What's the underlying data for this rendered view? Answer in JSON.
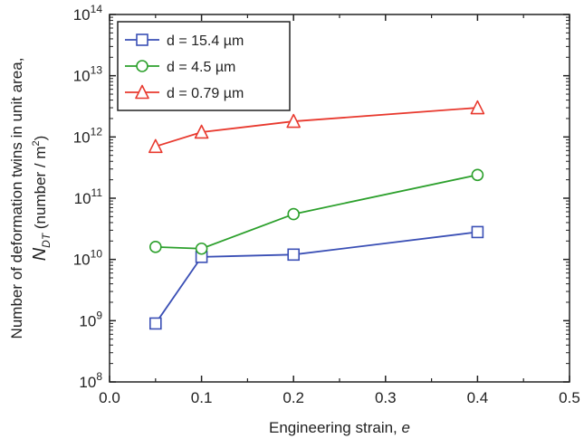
{
  "chart_data": {
    "type": "line",
    "title": "",
    "xlabel": "Engineering strain, e",
    "xlabel_main": "Engineering strain, ",
    "xlabel_var": "e",
    "ylabel_line1": "Number of deformation twins in unit area,",
    "ylabel_line2_sym": "N",
    "ylabel_line2_sub": "DT",
    "ylabel_line2_rest": " (number / m",
    "ylabel_line2_sup": "2",
    "ylabel_line2_end": ")",
    "x_scale": "linear",
    "y_scale": "log",
    "xlim": [
      0.0,
      0.5
    ],
    "ylim": [
      100000000.0,
      100000000000000.0
    ],
    "x_ticks": [
      0.0,
      0.1,
      0.2,
      0.3,
      0.4,
      0.5
    ],
    "x_tick_labels": [
      "0.0",
      "0.1",
      "0.2",
      "0.3",
      "0.4",
      "0.5"
    ],
    "y_tick_exponents": [
      8,
      9,
      10,
      11,
      12,
      13,
      14
    ],
    "y_tick_base": "10",
    "legend_position": "top-left",
    "series": [
      {
        "name": "d = 15.4 µm",
        "color": "#3a4fb5",
        "marker": "square",
        "x": [
          0.05,
          0.1,
          0.2,
          0.4
        ],
        "y": [
          900000000.0,
          11000000000.0,
          12000000000.0,
          28000000000.0
        ]
      },
      {
        "name": "d = 4.5 µm",
        "color": "#2ca02c",
        "marker": "circle",
        "x": [
          0.05,
          0.1,
          0.2,
          0.4
        ],
        "y": [
          16000000000.0,
          15000000000.0,
          55000000000.0,
          240000000000.0
        ]
      },
      {
        "name": "d = 0.79 µm",
        "color": "#e8392e",
        "marker": "triangle",
        "x": [
          0.05,
          0.1,
          0.2,
          0.4
        ],
        "y": [
          700000000000.0,
          1200000000000.0,
          1800000000000.0,
          3000000000000.0
        ]
      }
    ]
  }
}
